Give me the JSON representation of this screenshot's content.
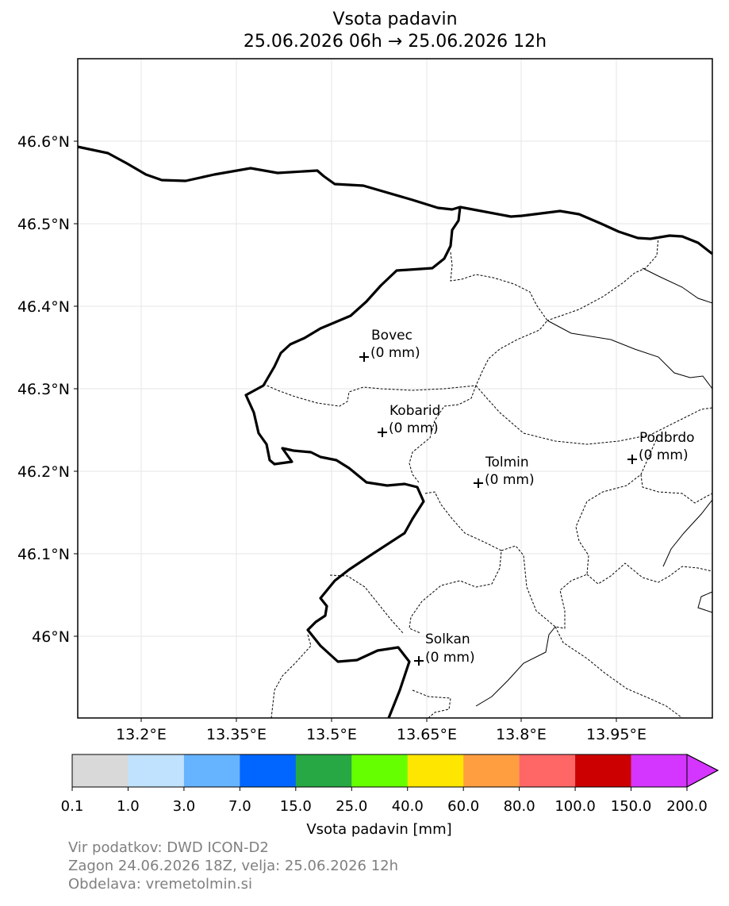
{
  "title": "Vsota padavin",
  "subtitle": "25.06.2026 06h → 25.06.2026 12h",
  "map": {
    "x_ticks": [
      "13.2°E",
      "13.35°E",
      "13.5°E",
      "13.65°E",
      "13.8°E",
      "13.95°E"
    ],
    "y_ticks": [
      "46.6°N",
      "46.5°N",
      "46.4°N",
      "46.3°N",
      "46.2°N",
      "46.1°N",
      "46°N"
    ],
    "locations": [
      {
        "name": "Bovec",
        "value": "(0 mm)"
      },
      {
        "name": "Kobarid",
        "value": "(0 mm)"
      },
      {
        "name": "Tolmin",
        "value": "(0 mm)"
      },
      {
        "name": "Podbrdo",
        "value": "(0 mm)"
      },
      {
        "name": "Solkan",
        "value": "(0 mm)"
      }
    ]
  },
  "colorbar": {
    "label": "Vsota padavin [mm]",
    "ticks": [
      "0.1",
      "1.0",
      "3.0",
      "7.0",
      "15.0",
      "25.0",
      "40.0",
      "60.0",
      "80.0",
      "100.0",
      "150.0",
      "200.0"
    ],
    "colors": [
      "#d9d9d9",
      "#c0e2ff",
      "#66b3ff",
      "#0066ff",
      "#27a844",
      "#66ff00",
      "#ffe600",
      "#ff9e40",
      "#ff6666",
      "#cc0000",
      "#d435ff"
    ],
    "extend_color": "#d435ff"
  },
  "footer": {
    "source": "Vir podatkov: DWD ICON-D2",
    "run": "Zagon 24.06.2026 18Z, velja: 25.06.2026 12h",
    "processing": "Obdelava: vremetolmin.si"
  }
}
